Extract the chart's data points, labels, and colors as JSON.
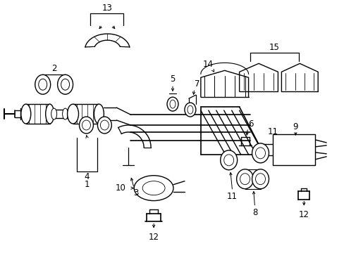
{
  "bg_color": "#ffffff",
  "line_color": "#000000",
  "fig_width": 4.89,
  "fig_height": 3.6,
  "dpi": 100,
  "label_fontsize": 8.5
}
